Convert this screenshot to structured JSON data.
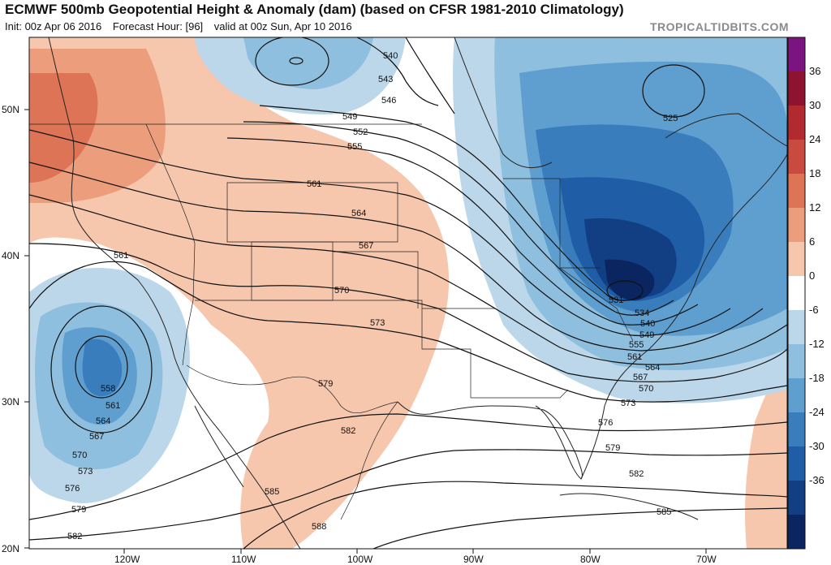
{
  "header": {
    "title": "ECMWF 500mb Geopotential Height & Anomaly (dam) (based on CFSR 1981-2010 Climatology)",
    "init": "Init: 00z Apr 06 2016",
    "forecast_hour": "Forecast Hour: [96]",
    "valid": "valid at 00z Sun, Apr 10 2016",
    "watermark": "TROPICALTIDBITS.COM"
  },
  "axes": {
    "lat_labels": [
      "50N",
      "40N",
      "30N",
      "20N"
    ],
    "lon_labels": [
      "120W",
      "110W",
      "100W",
      "90W",
      "80W",
      "70W"
    ]
  },
  "colorbar": {
    "labels": [
      "36",
      "30",
      "24",
      "18",
      "12",
      "6",
      "0",
      "-6",
      "-12",
      "-18",
      "-24",
      "-30",
      "-36"
    ],
    "colors": [
      "#7b1480",
      "#8e1330",
      "#b02a30",
      "#c94a3e",
      "#dd7456",
      "#eb9d7c",
      "#f6c6ad",
      "#ffffff",
      "#bcd7ea",
      "#8fbfdf",
      "#5f9fcf",
      "#3a7dbd",
      "#1f5ea7",
      "#123f83",
      "#0b2560"
    ]
  },
  "contours": {
    "labels": [
      "540",
      "543",
      "546",
      "549",
      "552",
      "555",
      "561",
      "564",
      "567",
      "570",
      "573",
      "579",
      "582",
      "585",
      "588",
      "561",
      "558",
      "561",
      "564",
      "567",
      "570",
      "573",
      "576",
      "579",
      "582",
      "525",
      "531",
      "534",
      "540",
      "549",
      "555",
      "561",
      "564",
      "567",
      "570",
      "573",
      "576",
      "579",
      "582",
      "585"
    ]
  }
}
